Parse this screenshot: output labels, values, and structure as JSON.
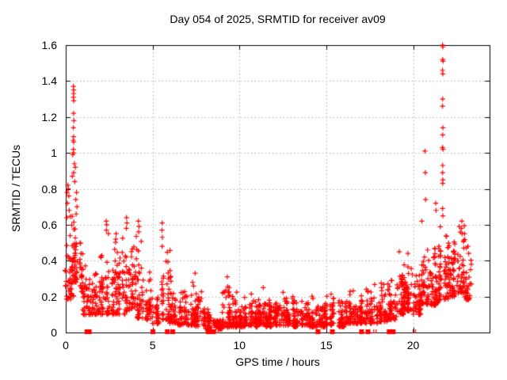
{
  "chart_data": {
    "type": "scatter",
    "title": "Day 054 of 2025, SRMTID for receiver av09",
    "xlabel": "GPS time / hours",
    "ylabel": "SRMTID / TECUs",
    "xlim": [
      0,
      24.4
    ],
    "ylim": [
      0,
      1.6
    ],
    "xticks": [
      {
        "v": 0,
        "label": "0"
      },
      {
        "v": 5,
        "label": "5"
      },
      {
        "v": 10,
        "label": "10"
      },
      {
        "v": 15,
        "label": "15"
      },
      {
        "v": 20,
        "label": "20"
      }
    ],
    "yticks": [
      {
        "v": 0,
        "label": "0"
      },
      {
        "v": 0.2,
        "label": "0.2"
      },
      {
        "v": 0.4,
        "label": "0.4"
      },
      {
        "v": 0.6,
        "label": "0.6"
      },
      {
        "v": 0.8,
        "label": "0.8"
      },
      {
        "v": 1,
        "label": "1"
      },
      {
        "v": 1.2,
        "label": "1.2"
      },
      {
        "v": 1.4,
        "label": "1.4"
      },
      {
        "v": 1.6,
        "label": "1.6"
      }
    ],
    "grid": true,
    "grid_color": "#b0b0b0",
    "frame_color": "#000000",
    "marker": "plus",
    "marker_color": "#ff0000",
    "background": "#ffffff",
    "legend": "none",
    "seed": 20254,
    "scatter_bins": [
      [
        0,
        0.25,
        0.18,
        0.85,
        26
      ],
      [
        0.25,
        0.5,
        0.2,
        0.75,
        30
      ],
      [
        0.5,
        0.75,
        0.28,
        0.8,
        30
      ],
      [
        0.75,
        1,
        0.22,
        0.55,
        26
      ],
      [
        1,
        1.5,
        0.1,
        0.45,
        42
      ],
      [
        1.5,
        2,
        0.1,
        0.38,
        40
      ],
      [
        2,
        2.5,
        0.1,
        0.62,
        46
      ],
      [
        2.5,
        3,
        0.1,
        0.55,
        42
      ],
      [
        3,
        3.5,
        0.1,
        0.64,
        42
      ],
      [
        3.5,
        4,
        0.12,
        0.58,
        46
      ],
      [
        4,
        4.5,
        0.08,
        0.62,
        46
      ],
      [
        4.5,
        5,
        0.07,
        0.35,
        36
      ],
      [
        5,
        5.5,
        0.05,
        0.3,
        36
      ],
      [
        5.5,
        6,
        0.06,
        0.55,
        40
      ],
      [
        6,
        6.5,
        0.05,
        0.35,
        40
      ],
      [
        6.5,
        7,
        0.04,
        0.3,
        40
      ],
      [
        7,
        7.5,
        0.04,
        0.33,
        42
      ],
      [
        7.5,
        8,
        0.03,
        0.25,
        40
      ],
      [
        8,
        8.5,
        0.02,
        0.18,
        36
      ],
      [
        8.5,
        9,
        0.02,
        0.16,
        36
      ],
      [
        9,
        9.5,
        0.03,
        0.3,
        46
      ],
      [
        9.5,
        10,
        0.03,
        0.25,
        46
      ],
      [
        10,
        10.5,
        0.03,
        0.2,
        46
      ],
      [
        10.5,
        11,
        0.03,
        0.22,
        46
      ],
      [
        11,
        11.5,
        0.04,
        0.26,
        46
      ],
      [
        11.5,
        12,
        0.03,
        0.22,
        46
      ],
      [
        12,
        12.5,
        0.04,
        0.2,
        46
      ],
      [
        12.5,
        13,
        0.04,
        0.24,
        46
      ],
      [
        13,
        13.5,
        0.03,
        0.22,
        46
      ],
      [
        13.5,
        14,
        0.04,
        0.2,
        46
      ],
      [
        14,
        14.5,
        0.03,
        0.22,
        42
      ],
      [
        14.5,
        15,
        0.03,
        0.2,
        42
      ],
      [
        15,
        15.5,
        0.04,
        0.22,
        42
      ],
      [
        15.5,
        16,
        0.03,
        0.2,
        42
      ],
      [
        16,
        16.5,
        0.05,
        0.25,
        44
      ],
      [
        16.5,
        17,
        0.05,
        0.25,
        44
      ],
      [
        17,
        17.5,
        0.05,
        0.28,
        44
      ],
      [
        17.5,
        18,
        0.05,
        0.3,
        44
      ],
      [
        18,
        18.5,
        0.06,
        0.3,
        44
      ],
      [
        18.5,
        19,
        0.07,
        0.35,
        46
      ],
      [
        19,
        19.5,
        0.1,
        0.45,
        52
      ],
      [
        19.5,
        20,
        0.12,
        0.45,
        52
      ],
      [
        20,
        20.5,
        0.1,
        0.4,
        48
      ],
      [
        20.5,
        21,
        0.15,
        0.55,
        52
      ],
      [
        21,
        21.5,
        0.15,
        0.62,
        52
      ],
      [
        21.5,
        22,
        0.18,
        0.65,
        58
      ],
      [
        22,
        22.5,
        0.2,
        0.6,
        52
      ],
      [
        22.5,
        23,
        0.22,
        0.62,
        48
      ],
      [
        23,
        23.4,
        0.18,
        0.5,
        30
      ]
    ],
    "notable_points": [
      [
        0.44,
        1.37
      ],
      [
        0.46,
        1.35
      ],
      [
        0.45,
        1.33
      ],
      [
        0.44,
        1.31
      ],
      [
        0.46,
        1.29
      ],
      [
        0.45,
        1.22
      ],
      [
        0.47,
        1.18
      ],
      [
        0.44,
        1.14
      ],
      [
        0.45,
        1.09
      ],
      [
        0.43,
        1.07
      ],
      [
        0.46,
        1.06
      ],
      [
        0.44,
        1.02
      ],
      [
        0.45,
        1.0
      ],
      [
        0.4,
        0.99
      ],
      [
        0.5,
        0.94
      ],
      [
        0.55,
        0.92
      ],
      [
        0.46,
        0.89
      ],
      [
        0.38,
        0.87
      ],
      [
        0.52,
        0.84
      ],
      [
        0.12,
        0.82
      ],
      [
        0.15,
        0.8
      ],
      [
        0.08,
        0.78
      ],
      [
        0.18,
        0.76
      ],
      [
        0.1,
        0.72
      ],
      [
        0.2,
        0.68
      ],
      [
        0.06,
        0.64
      ],
      [
        0.62,
        0.78
      ],
      [
        0.58,
        0.74
      ],
      [
        0.65,
        0.7
      ],
      [
        0.6,
        0.66
      ],
      [
        2.33,
        0.62
      ],
      [
        2.36,
        0.6
      ],
      [
        2.34,
        0.57
      ],
      [
        2.9,
        0.55
      ],
      [
        2.88,
        0.52
      ],
      [
        3.5,
        0.64
      ],
      [
        3.52,
        0.61
      ],
      [
        3.49,
        0.58
      ],
      [
        4.18,
        0.62
      ],
      [
        4.22,
        0.59
      ],
      [
        4.2,
        0.56
      ],
      [
        5.55,
        0.61
      ],
      [
        5.54,
        0.57
      ],
      [
        5.56,
        0.53
      ],
      [
        5.55,
        0.48
      ],
      [
        7.45,
        0.33
      ],
      [
        9.3,
        0.31
      ],
      [
        11.37,
        0.25
      ],
      [
        19.2,
        0.45
      ],
      [
        19.7,
        0.44
      ],
      [
        20.68,
        1.01
      ],
      [
        20.7,
        0.89
      ],
      [
        20.72,
        0.74
      ],
      [
        20.5,
        0.62
      ],
      [
        21.3,
        0.72
      ],
      [
        21.32,
        0.68
      ],
      [
        21.69,
        1.6
      ],
      [
        21.71,
        1.59
      ],
      [
        21.7,
        1.52
      ],
      [
        21.72,
        1.51
      ],
      [
        21.69,
        1.46
      ],
      [
        21.71,
        1.44
      ],
      [
        21.7,
        1.3
      ],
      [
        21.69,
        1.26
      ],
      [
        21.71,
        1.14
      ],
      [
        21.7,
        1.1
      ],
      [
        21.69,
        1.03
      ],
      [
        21.72,
        1.02
      ],
      [
        21.7,
        0.93
      ],
      [
        21.69,
        0.89
      ],
      [
        21.71,
        0.85
      ],
      [
        21.7,
        0.83
      ],
      [
        21.69,
        0.69
      ],
      [
        21.71,
        0.65
      ],
      [
        22.8,
        0.62
      ],
      [
        22.78,
        0.58
      ],
      [
        22.82,
        0.55
      ],
      [
        23.15,
        0.48
      ],
      [
        23.2,
        0.44
      ],
      [
        23.3,
        0.35
      ]
    ],
    "zero_clusters": [
      {
        "x": 1.22,
        "style": "square"
      },
      {
        "x": 1.35,
        "style": "square"
      },
      {
        "x": 5.02,
        "style": "square"
      },
      {
        "x": 5.85,
        "style": "square"
      },
      {
        "x": 6.16,
        "style": "square"
      },
      {
        "x": 8.2,
        "style": "square"
      },
      {
        "x": 8.35,
        "style": "square"
      },
      {
        "x": 8.5,
        "style": "square"
      },
      {
        "x": 8.7,
        "style": "bars"
      },
      {
        "x": 14.52,
        "style": "square"
      },
      {
        "x": 15.35,
        "style": "square"
      },
      {
        "x": 17.03,
        "style": "square"
      },
      {
        "x": 17.4,
        "style": "square"
      },
      {
        "x": 17.8,
        "style": "bars"
      },
      {
        "x": 18.62,
        "style": "square"
      },
      {
        "x": 18.85,
        "style": "square"
      },
      {
        "x": 20.07,
        "style": "bars"
      }
    ]
  }
}
